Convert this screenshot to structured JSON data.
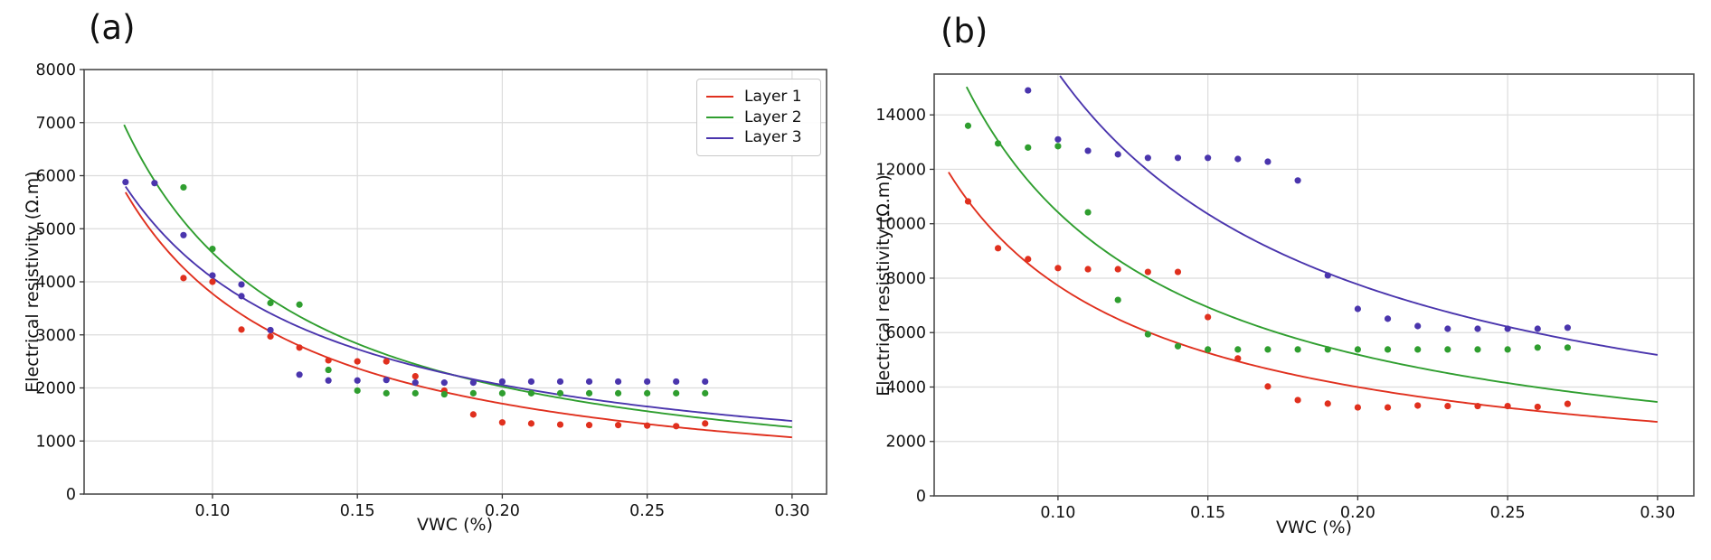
{
  "figure": {
    "background": "#ffffff",
    "grid_color": "#dcdcdc",
    "spine_color": "#4d4d4d",
    "text_color": "#111111"
  },
  "chart_data": [
    {
      "id": "a",
      "type": "scatter",
      "title": "(a)",
      "xlabel": "VWC (%)",
      "ylabel": "Electrical resistivity (Ω.m)",
      "xlim": [
        0.0557,
        0.3119
      ],
      "ylim": [
        0,
        8000
      ],
      "xticks": [
        0.1,
        0.15,
        0.2,
        0.25,
        0.3
      ],
      "xtick_labels": [
        "0.10",
        "0.15",
        "0.20",
        "0.25",
        "0.30"
      ],
      "yticks": [
        0,
        1000,
        2000,
        3000,
        4000,
        5000,
        6000,
        7000,
        8000
      ],
      "ytick_labels": [
        "0",
        "1000",
        "2000",
        "3000",
        "4000",
        "5000",
        "6000",
        "7000",
        "8000"
      ],
      "grid": true,
      "legend": {
        "position": "upper right",
        "entries": [
          {
            "label": "Layer 1",
            "color": "#e0301e"
          },
          {
            "label": "Layer 2",
            "color": "#2f9e2f"
          },
          {
            "label": "Layer 3",
            "color": "#4a35ad"
          }
        ]
      },
      "series": [
        {
          "name": "Layer 1",
          "color": "#e0301e",
          "fit": {
            "a": 268.6,
            "b": -1.148,
            "x_start": 0.07,
            "x_end": 0.3
          },
          "points": [
            [
              0.09,
              4070
            ],
            [
              0.1,
              4000
            ],
            [
              0.11,
              3100
            ],
            [
              0.12,
              2970
            ],
            [
              0.13,
              2760
            ],
            [
              0.14,
              2520
            ],
            [
              0.15,
              2500
            ],
            [
              0.16,
              2500
            ],
            [
              0.17,
              2220
            ],
            [
              0.18,
              1950
            ],
            [
              0.19,
              1500
            ],
            [
              0.2,
              1350
            ],
            [
              0.21,
              1330
            ],
            [
              0.22,
              1310
            ],
            [
              0.23,
              1300
            ],
            [
              0.24,
              1300
            ],
            [
              0.25,
              1290
            ],
            [
              0.26,
              1280
            ],
            [
              0.27,
              1330
            ]
          ]
        },
        {
          "name": "Layer 2",
          "color": "#2f9e2f",
          "fit": {
            "a": 309.0,
            "b": -1.168,
            "x_start": 0.0695,
            "x_end": 0.3
          },
          "points": [
            [
              0.09,
              5780
            ],
            [
              0.1,
              4620
            ],
            [
              0.12,
              3600
            ],
            [
              0.13,
              3570
            ],
            [
              0.14,
              2340
            ],
            [
              0.15,
              1950
            ],
            [
              0.16,
              1900
            ],
            [
              0.17,
              1900
            ],
            [
              0.18,
              1880
            ],
            [
              0.19,
              1900
            ],
            [
              0.2,
              1900
            ],
            [
              0.21,
              1900
            ],
            [
              0.22,
              1900
            ],
            [
              0.23,
              1900
            ],
            [
              0.24,
              1900
            ],
            [
              0.25,
              1900
            ],
            [
              0.26,
              1900
            ],
            [
              0.27,
              1900
            ]
          ]
        },
        {
          "name": "Layer 3",
          "color": "#4a35ad",
          "fit": {
            "a": 420.0,
            "b": -0.987,
            "x_start": 0.07,
            "x_end": 0.3
          },
          "points": [
            [
              0.07,
              5880
            ],
            [
              0.08,
              5860
            ],
            [
              0.09,
              4880
            ],
            [
              0.1,
              4120
            ],
            [
              0.11,
              3950
            ],
            [
              0.11,
              3730
            ],
            [
              0.12,
              3090
            ],
            [
              0.13,
              2250
            ],
            [
              0.14,
              2140
            ],
            [
              0.15,
              2140
            ],
            [
              0.16,
              2150
            ],
            [
              0.17,
              2100
            ],
            [
              0.18,
              2100
            ],
            [
              0.19,
              2100
            ],
            [
              0.2,
              2120
            ],
            [
              0.21,
              2120
            ],
            [
              0.22,
              2120
            ],
            [
              0.23,
              2120
            ],
            [
              0.24,
              2120
            ],
            [
              0.25,
              2120
            ],
            [
              0.26,
              2120
            ],
            [
              0.27,
              2120
            ]
          ]
        }
      ]
    },
    {
      "id": "b",
      "type": "scatter",
      "title": "(b)",
      "xlabel": "VWC (%)",
      "ylabel": "Electrical resistivity (Ω.m)",
      "xlim": [
        0.0587,
        0.3121
      ],
      "ylim": [
        0,
        15500
      ],
      "xticks": [
        0.1,
        0.15,
        0.2,
        0.25,
        0.3
      ],
      "xtick_labels": [
        "0.10",
        "0.15",
        "0.20",
        "0.25",
        "0.30"
      ],
      "yticks": [
        0,
        2000,
        4000,
        6000,
        8000,
        10000,
        12000,
        14000
      ],
      "ytick_labels": [
        "0",
        "2000",
        "4000",
        "6000",
        "8000",
        "10000",
        "12000",
        "14000"
      ],
      "grid": true,
      "legend": null,
      "series": [
        {
          "name": "Layer 1",
          "color": "#e0301e",
          "fit": {
            "a": 867.0,
            "b": -0.95,
            "x_start": 0.0635,
            "x_end": 0.3
          },
          "points": [
            [
              0.07,
              10820
            ],
            [
              0.08,
              9100
            ],
            [
              0.09,
              8700
            ],
            [
              0.1,
              8370
            ],
            [
              0.11,
              8330
            ],
            [
              0.12,
              8330
            ],
            [
              0.13,
              8230
            ],
            [
              0.14,
              8230
            ],
            [
              0.15,
              6570
            ],
            [
              0.16,
              5050
            ],
            [
              0.17,
              4020
            ],
            [
              0.18,
              3520
            ],
            [
              0.19,
              3390
            ],
            [
              0.2,
              3250
            ],
            [
              0.21,
              3250
            ],
            [
              0.22,
              3320
            ],
            [
              0.23,
              3300
            ],
            [
              0.24,
              3300
            ],
            [
              0.25,
              3300
            ],
            [
              0.26,
              3270
            ],
            [
              0.27,
              3380
            ]
          ]
        },
        {
          "name": "Layer 2",
          "color": "#2f9e2f",
          "fit": {
            "a": 1028.0,
            "b": -1.006,
            "x_start": 0.0695,
            "x_end": 0.3
          },
          "points": [
            [
              0.07,
              13600
            ],
            [
              0.08,
              12950
            ],
            [
              0.09,
              12800
            ],
            [
              0.1,
              12850
            ],
            [
              0.11,
              10420
            ],
            [
              0.12,
              7200
            ],
            [
              0.13,
              5940
            ],
            [
              0.14,
              5500
            ],
            [
              0.15,
              5380
            ],
            [
              0.16,
              5380
            ],
            [
              0.17,
              5380
            ],
            [
              0.18,
              5380
            ],
            [
              0.19,
              5380
            ],
            [
              0.2,
              5380
            ],
            [
              0.21,
              5380
            ],
            [
              0.22,
              5380
            ],
            [
              0.23,
              5380
            ],
            [
              0.24,
              5380
            ],
            [
              0.25,
              5380
            ],
            [
              0.26,
              5450
            ],
            [
              0.27,
              5450
            ]
          ]
        },
        {
          "name": "Layer 3",
          "color": "#4a35ad",
          "fit": {
            "a": 1554.0,
            "b": -1.0,
            "x_start": 0.07,
            "x_end": 0.3
          },
          "points": [
            [
              0.09,
              14900
            ],
            [
              0.1,
              13100
            ],
            [
              0.11,
              12680
            ],
            [
              0.12,
              12550
            ],
            [
              0.13,
              12420
            ],
            [
              0.14,
              12420
            ],
            [
              0.15,
              12420
            ],
            [
              0.16,
              12380
            ],
            [
              0.17,
              12280
            ],
            [
              0.18,
              11590
            ],
            [
              0.19,
              8100
            ],
            [
              0.2,
              6870
            ],
            [
              0.21,
              6510
            ],
            [
              0.22,
              6240
            ],
            [
              0.23,
              6140
            ],
            [
              0.24,
              6140
            ],
            [
              0.25,
              6140
            ],
            [
              0.26,
              6140
            ],
            [
              0.27,
              6180
            ]
          ]
        }
      ]
    }
  ]
}
